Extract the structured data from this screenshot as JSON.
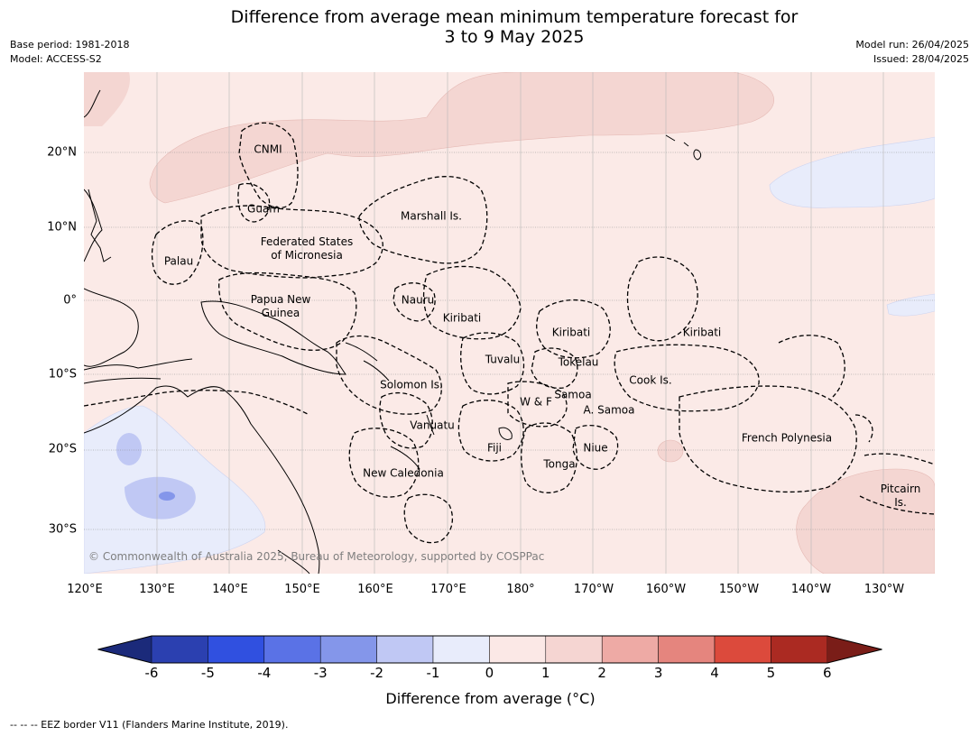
{
  "title_line1": "Difference from average mean minimum temperature forecast for",
  "title_line2": "3 to 9 May 2025",
  "base_period": "Base period: 1981-2018",
  "model": "Model: ACCESS-S2",
  "model_run": "Model run: 26/04/2025",
  "issued": "Issued: 28/04/2025",
  "copyright": "© Commonwealth of Australia 2025, Bureau of Meteorology, supported by COSPPac",
  "lat_labels": [
    "20°N",
    "10°N",
    "0°",
    "10°S",
    "20°S",
    "30°S"
  ],
  "lon_labels": [
    "120°E",
    "130°E",
    "140°E",
    "150°E",
    "160°E",
    "170°E",
    "180°",
    "170°W",
    "160°W",
    "150°W",
    "140°W",
    "130°W"
  ],
  "places": {
    "cnmi": "CNMI",
    "guam": "Guam",
    "marshall": "Marshall Is.",
    "fsm_1": "Federated States",
    "fsm_2": "of Micronesia",
    "palau": "Palau",
    "png_1": "Papua New",
    "png_2": "Guinea",
    "nauru": "Nauru",
    "kiribati_w": "Kiribati",
    "kiribati_c": "Kiribati",
    "kiribati_e": "Kiribati",
    "tuvalu": "Tuvalu",
    "tokelau": "Tokelau",
    "cook": "Cook Is.",
    "solomon": "Solomon Is.",
    "wf": "W & F",
    "samoa": "Samoa",
    "asamoa": "A. Samoa",
    "vanuatu": "Vanuatu",
    "fiji": "Fiji",
    "niue": "Niue",
    "tonga": "Tonga",
    "fp": "French Polynesia",
    "newcal": "New Caledonia",
    "pitcairn_1": "Pitcairn",
    "pitcairn_2": "Is."
  },
  "colorbar": {
    "ticks": [
      "-6",
      "-5",
      "-4",
      "-3",
      "-2",
      "-1",
      "0",
      "1",
      "2",
      "3",
      "4",
      "5",
      "6"
    ],
    "colors": [
      "#1b2a7a",
      "#2b40b0",
      "#3050e0",
      "#5a72e6",
      "#8496ea",
      "#c0c8f4",
      "#e8ecfb",
      "#fbe8e6",
      "#f5d5d2",
      "#eeaaa5",
      "#e5857e",
      "#dc4a3c",
      "#ab2a22",
      "#7a1d18"
    ],
    "label": "Difference from average (°C)"
  },
  "footer": "--  --  -- EEZ border V11 (Flanders Marine Institute, 2019)."
}
